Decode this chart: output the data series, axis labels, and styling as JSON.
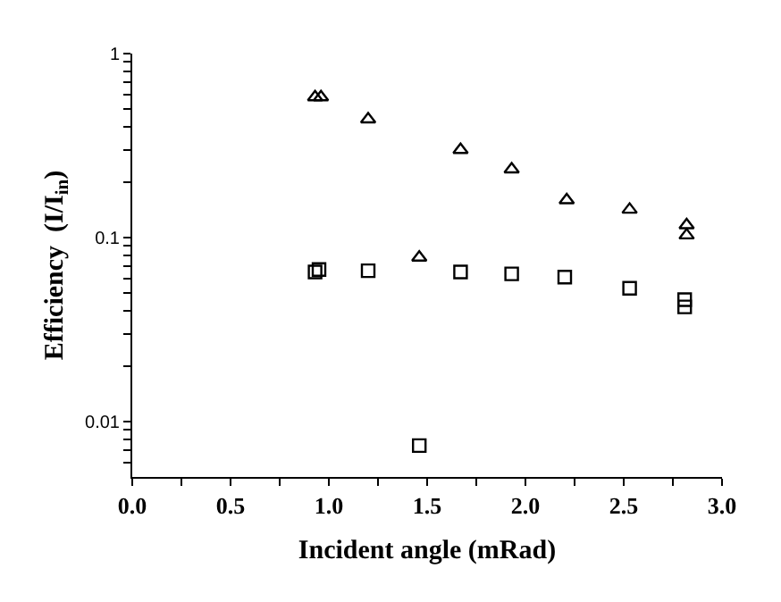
{
  "chart_data": {
    "type": "scatter",
    "xlabel": "Incident angle (mRad)",
    "ylabel": "Efficiency  (I/I$_{in}$)",
    "log": "y",
    "xlim": [
      0,
      3
    ],
    "ylim": [
      0.005,
      1
    ],
    "xticks": [
      {
        "value": 0,
        "label": "0.0"
      },
      {
        "value": 0.25,
        "label": null
      },
      {
        "value": 0.5,
        "label": "0.5"
      },
      {
        "value": 0.75,
        "label": null
      },
      {
        "value": 1,
        "label": "1.0"
      },
      {
        "value": 1.25,
        "label": null
      },
      {
        "value": 1.5,
        "label": "1.5"
      },
      {
        "value": 1.75,
        "label": null
      },
      {
        "value": 2,
        "label": "2.0"
      },
      {
        "value": 2.25,
        "label": null
      },
      {
        "value": 2.5,
        "label": "2.5"
      },
      {
        "value": 2.75,
        "label": null
      },
      {
        "value": 3,
        "label": "3.0"
      }
    ],
    "yticks": [
      {
        "value": 0.006,
        "label": null
      },
      {
        "value": 0.007,
        "label": null
      },
      {
        "value": 0.008,
        "label": null
      },
      {
        "value": 0.009,
        "label": null
      },
      0.01,
      {
        "value": 0.02,
        "label": null
      },
      {
        "value": 0.03,
        "label": null
      },
      {
        "value": 0.04,
        "label": null
      },
      {
        "value": 0.05,
        "label": null
      },
      {
        "value": 0.06,
        "label": null
      },
      {
        "value": 0.07,
        "label": null
      },
      {
        "value": 0.08,
        "label": null
      },
      {
        "value": 0.09,
        "label": null
      },
      0.1,
      {
        "value": 0.2,
        "label": null
      },
      {
        "value": 0.3,
        "label": null
      },
      {
        "value": 0.4,
        "label": null
      },
      {
        "value": 0.5,
        "label": null
      },
      {
        "value": 0.6,
        "label": null
      },
      {
        "value": 0.7,
        "label": null
      },
      {
        "value": 0.8,
        "label": null
      },
      {
        "value": 0.9,
        "label": null
      },
      1
    ],
    "series": [
      {
        "color": "#000000",
        "marker": "triangle",
        "x": [
          0.93,
          0.96,
          1.2,
          1.67,
          1.93,
          2.21,
          2.53,
          2.82,
          2.82
        ],
        "values": [
          0.58,
          0.58,
          0.44,
          0.3,
          0.235,
          0.16,
          0.142,
          0.117,
          0.103
        ]
      },
      {
        "color": "#000000",
        "marker": "square",
        "x": [
          0.93,
          0.95,
          1.2,
          1.67,
          1.93,
          2.2,
          2.53,
          2.81,
          2.81
        ],
        "values": [
          0.065,
          0.067,
          0.066,
          0.065,
          0.0635,
          0.061,
          0.053,
          0.046,
          0.042
        ]
      },
      {
        "color": "#000000",
        "marker": "triangle",
        "x": [
          1.46
        ],
        "values": [
          0.078
        ]
      },
      {
        "color": "#000000",
        "marker": "square",
        "x": [
          1.46
        ],
        "values": [
          0.0074
        ]
      }
    ]
  }
}
